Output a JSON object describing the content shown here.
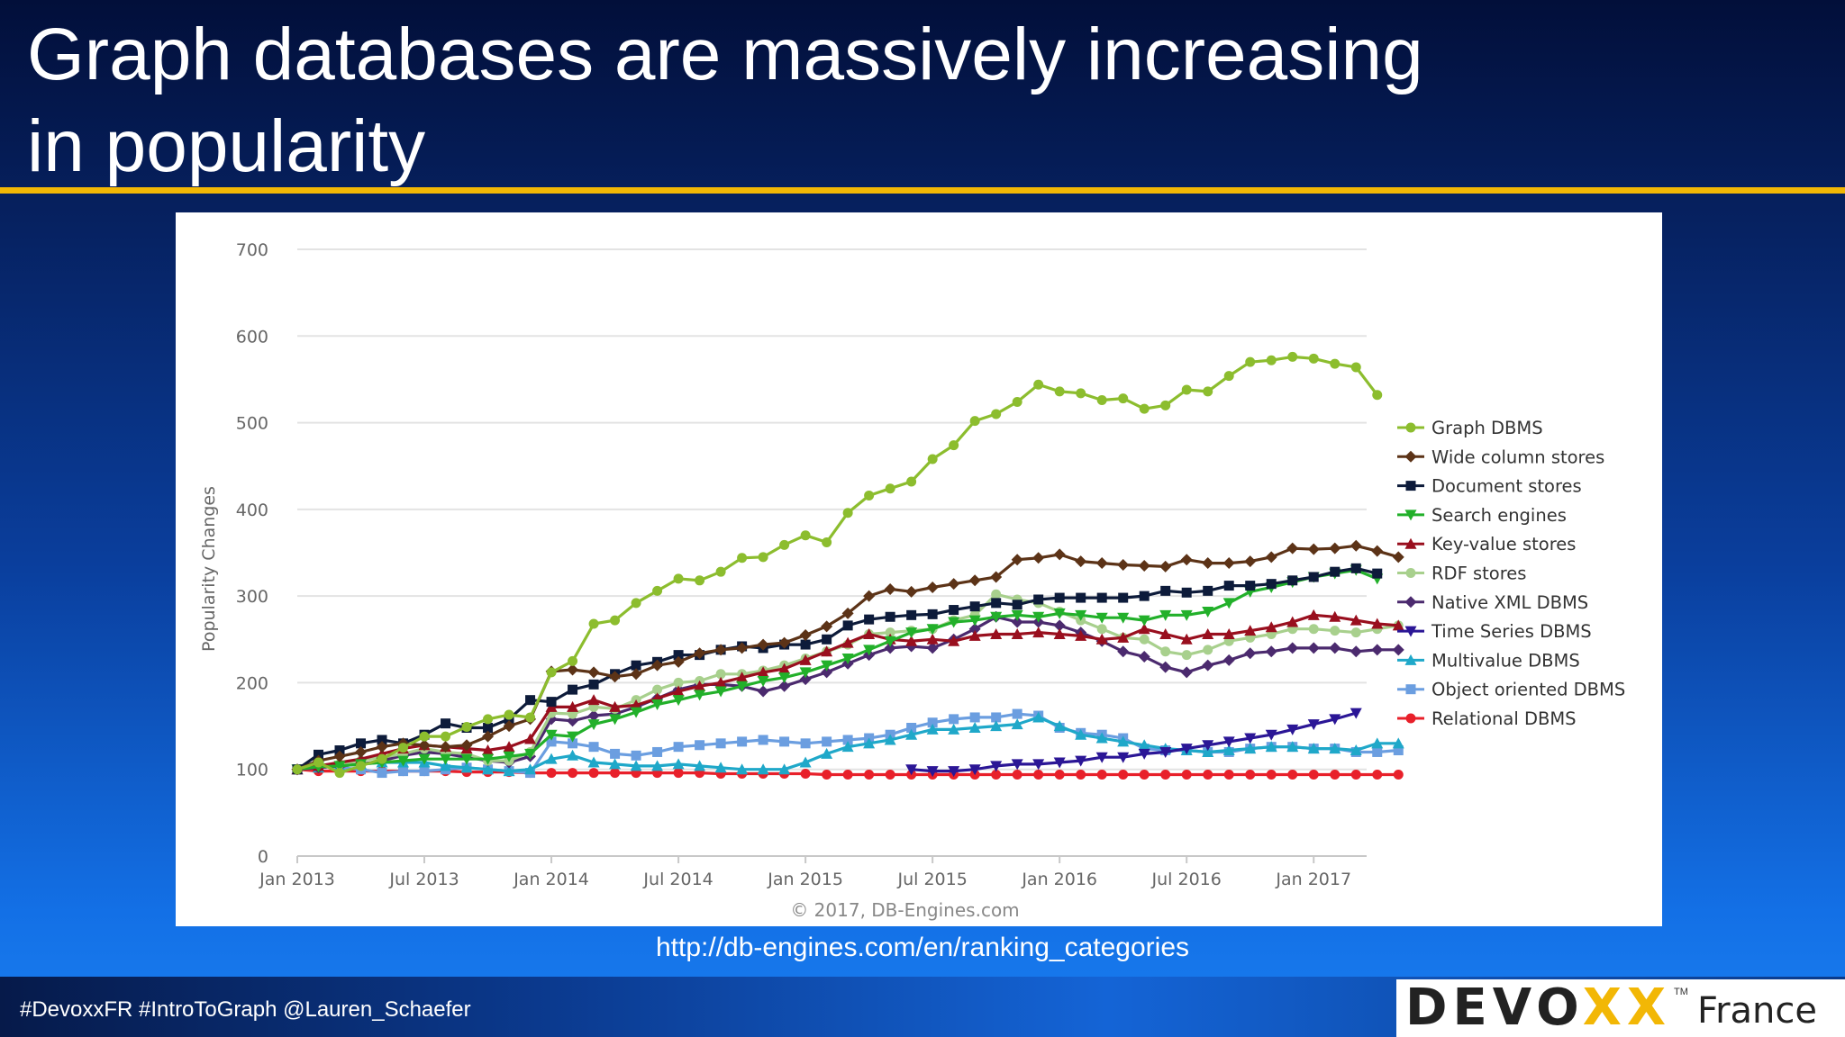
{
  "slide": {
    "title_line1": "Graph databases are massively increasing",
    "title_line2": "in popularity",
    "source_link": "http://db-engines.com/en/ranking_categories",
    "hashtags": "#DevoxxFR  #IntroToGraph @Lauren_Schaefer",
    "logo_word_start": "DEVO",
    "logo_word_end": "XX",
    "logo_tm": "TM",
    "logo_country": "France",
    "accent_color": "#f2b705"
  },
  "chart_data": {
    "type": "line",
    "ylabel": "Popularity Changes",
    "xlabel": "",
    "credit": "© 2017, DB-Engines.com",
    "ylim": [
      0,
      700
    ],
    "yticks": [
      0,
      100,
      200,
      300,
      400,
      500,
      600,
      700
    ],
    "xlim": [
      0,
      50.5
    ],
    "xticks": [
      {
        "label": "Jan 2013",
        "month": 0
      },
      {
        "label": "Jul 2013",
        "month": 6
      },
      {
        "label": "Jan 2014",
        "month": 12
      },
      {
        "label": "Jul 2014",
        "month": 18
      },
      {
        "label": "Jan 2015",
        "month": 24
      },
      {
        "label": "Jul 2015",
        "month": 30
      },
      {
        "label": "Jan 2016",
        "month": 36
      },
      {
        "label": "Jul 2016",
        "month": 42
      },
      {
        "label": "Jan 2017",
        "month": 48
      }
    ],
    "legend_position": "right",
    "grid": "horizontal",
    "series": [
      {
        "name": "Graph DBMS",
        "color": "#8cbd2e",
        "marker": "circle",
        "start": 0,
        "values": [
          100,
          108,
          96,
          104,
          112,
          125,
          138,
          138,
          149,
          158,
          163,
          160,
          212,
          225,
          268,
          272,
          292,
          306,
          320,
          318,
          328,
          344,
          345,
          359,
          370,
          362,
          396,
          416,
          424,
          432,
          458,
          474,
          502,
          510,
          524,
          544,
          536,
          534,
          526,
          528,
          516,
          520,
          538,
          536,
          554,
          570,
          572,
          576,
          574,
          568,
          564,
          532
        ]
      },
      {
        "name": "Wide column stores",
        "color": "#5c3317",
        "marker": "diamond",
        "start": 0,
        "values": [
          100,
          110,
          115,
          120,
          126,
          130,
          128,
          126,
          128,
          138,
          150,
          158,
          213,
          215,
          212,
          207,
          210,
          220,
          224,
          234,
          238,
          240,
          244,
          246,
          255,
          265,
          280,
          300,
          308,
          305,
          310,
          314,
          318,
          322,
          342,
          344,
          348,
          340,
          338,
          336,
          335,
          334,
          342,
          338,
          338,
          340,
          345,
          355,
          354,
          355,
          358,
          352,
          345
        ]
      },
      {
        "name": "Document stores",
        "color": "#0d1b3a",
        "marker": "square",
        "start": 0,
        "values": [
          100,
          117,
          122,
          130,
          134,
          130,
          140,
          153,
          148,
          148,
          158,
          180,
          178,
          192,
          198,
          210,
          220,
          224,
          232,
          232,
          238,
          242,
          240,
          244,
          244,
          250,
          266,
          273,
          276,
          278,
          279,
          284,
          288,
          292,
          290,
          296,
          298,
          298,
          298,
          298,
          300,
          306,
          304,
          306,
          312,
          312,
          314,
          318,
          322,
          328,
          332,
          326
        ]
      },
      {
        "name": "Search engines",
        "color": "#22b02a",
        "marker": "triangle-down",
        "start": 0,
        "values": [
          100,
          103,
          104,
          106,
          108,
          110,
          112,
          112,
          112,
          112,
          115,
          118,
          140,
          138,
          152,
          158,
          166,
          175,
          180,
          186,
          190,
          196,
          202,
          206,
          212,
          220,
          228,
          238,
          248,
          258,
          262,
          270,
          272,
          276,
          278,
          276,
          280,
          278,
          275,
          275,
          272,
          278,
          278,
          282,
          292,
          305,
          310,
          316,
          322,
          326,
          330,
          320
        ]
      },
      {
        "name": "Key-value stores",
        "color": "#990f1e",
        "marker": "triangle-up",
        "start": 0,
        "values": [
          100,
          104,
          108,
          112,
          118,
          124,
          128,
          126,
          124,
          122,
          126,
          135,
          172,
          172,
          180,
          172,
          174,
          182,
          190,
          196,
          200,
          206,
          212,
          216,
          226,
          236,
          246,
          256,
          250,
          248,
          250,
          248,
          254,
          256,
          256,
          258,
          256,
          254,
          250,
          252,
          262,
          256,
          250,
          256,
          256,
          260,
          264,
          270,
          278,
          276,
          272,
          268,
          266
        ]
      },
      {
        "name": "RDF stores",
        "color": "#a8d08d",
        "marker": "circle",
        "start": 0,
        "values": [
          100,
          105,
          106,
          110,
          114,
          118,
          124,
          120,
          118,
          110,
          110,
          120,
          165,
          164,
          172,
          170,
          180,
          192,
          200,
          202,
          210,
          210,
          214,
          220,
          228,
          236,
          244,
          256,
          258,
          260,
          262,
          272,
          278,
          302,
          296,
          292,
          282,
          272,
          262,
          252,
          250,
          236,
          232,
          238,
          248,
          252,
          256,
          262,
          262,
          260,
          258,
          262,
          266
        ]
      },
      {
        "name": "Native XML DBMS",
        "color": "#4b2a6e",
        "marker": "diamond",
        "start": 0,
        "values": [
          100,
          102,
          104,
          106,
          110,
          116,
          120,
          118,
          114,
          110,
          108,
          115,
          158,
          156,
          162,
          164,
          172,
          182,
          192,
          198,
          198,
          196,
          190,
          196,
          204,
          212,
          222,
          232,
          240,
          242,
          240,
          250,
          262,
          276,
          270,
          270,
          266,
          258,
          248,
          236,
          230,
          218,
          212,
          220,
          226,
          234,
          236,
          240,
          240,
          240,
          236,
          238,
          238
        ]
      },
      {
        "name": "Time Series DBMS",
        "color": "#2b1696",
        "marker": "triangle-down",
        "start": 29,
        "values": [
          100,
          98,
          98,
          100,
          104,
          106,
          106,
          108,
          110,
          114,
          114,
          118,
          120,
          124,
          128,
          132,
          136,
          140,
          146,
          152,
          158,
          165
        ]
      },
      {
        "name": "Multivalue DBMS",
        "color": "#1fa8c9",
        "marker": "triangle-up",
        "start": 0,
        "values": [
          100,
          102,
          104,
          106,
          108,
          108,
          108,
          104,
          102,
          100,
          98,
          100,
          112,
          116,
          108,
          106,
          104,
          104,
          106,
          104,
          102,
          100,
          100,
          100,
          108,
          118,
          126,
          130,
          134,
          140,
          146,
          146,
          148,
          150,
          152,
          160,
          150,
          140,
          136,
          132,
          128,
          124,
          122,
          120,
          122,
          124,
          126,
          126,
          124,
          124,
          122,
          130,
          130
        ]
      },
      {
        "name": "Object oriented DBMS",
        "color": "#6b9ee0",
        "marker": "square",
        "start": 0,
        "values": [
          100,
          104,
          102,
          100,
          96,
          98,
          98,
          100,
          102,
          100,
          98,
          96,
          132,
          130,
          126,
          118,
          116,
          120,
          126,
          128,
          130,
          132,
          134,
          132,
          130,
          132,
          134,
          136,
          140,
          148,
          154,
          158,
          160,
          160,
          164,
          162,
          148,
          142,
          140,
          136,
          124,
          122,
          122,
          120,
          120,
          124,
          126,
          126,
          124,
          124,
          120,
          120,
          122
        ]
      },
      {
        "name": "Relational DBMS",
        "color": "#e8202a",
        "marker": "circle",
        "start": 0,
        "values": [
          100,
          98,
          98,
          98,
          98,
          98,
          98,
          98,
          97,
          97,
          97,
          96,
          96,
          96,
          96,
          96,
          96,
          96,
          96,
          96,
          95,
          95,
          95,
          95,
          95,
          94,
          94,
          94,
          94,
          94,
          94,
          94,
          94,
          94,
          94,
          94,
          94,
          94,
          94,
          94,
          94,
          94,
          94,
          94,
          94,
          94,
          94,
          94,
          94,
          94,
          94,
          94,
          94
        ]
      }
    ]
  }
}
